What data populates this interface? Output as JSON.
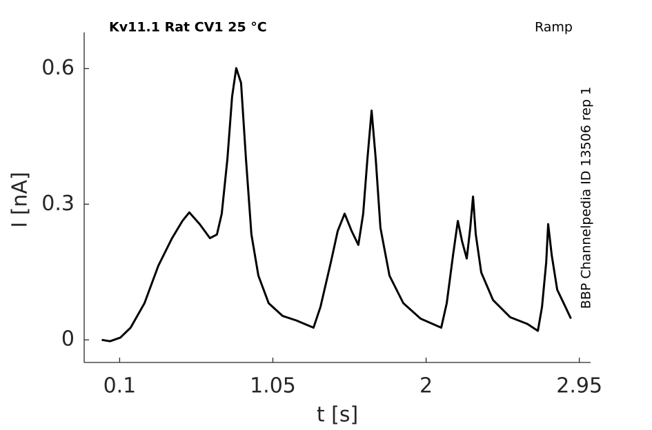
{
  "chart_data": {
    "type": "line",
    "title": "Kv11.1  Rat  CV1  25 °C",
    "subtitle": "Ramp",
    "annotation": "BBP Channelpedia ID 13506 rep 1",
    "xlabel": "t [s]",
    "ylabel": "I [nA]",
    "x": [
      -0.011,
      0.04,
      0.104,
      0.168,
      0.254,
      0.34,
      0.425,
      0.489,
      0.532,
      0.596,
      0.66,
      0.703,
      0.733,
      0.768,
      0.797,
      0.823,
      0.853,
      0.883,
      0.917,
      0.96,
      1.024,
      1.11,
      1.195,
      1.302,
      1.345,
      1.41,
      1.452,
      1.495,
      1.538,
      1.58,
      1.61,
      1.636,
      1.662,
      1.688,
      1.717,
      1.773,
      1.859,
      1.966,
      2.094,
      2.128,
      2.167,
      2.197,
      2.223,
      2.252,
      2.274,
      2.291,
      2.308,
      2.342,
      2.415,
      2.522,
      2.629,
      2.693,
      2.719,
      2.745,
      2.757,
      2.779,
      2.813,
      2.864,
      2.898
    ],
    "values": [
      0,
      -0.003,
      0.005,
      0.027,
      0.081,
      0.164,
      0.225,
      0.263,
      0.282,
      0.256,
      0.225,
      0.233,
      0.279,
      0.4,
      0.538,
      0.601,
      0.568,
      0.4,
      0.233,
      0.142,
      0.081,
      0.053,
      0.043,
      0.027,
      0.073,
      0.172,
      0.241,
      0.279,
      0.241,
      0.21,
      0.279,
      0.4,
      0.507,
      0.4,
      0.248,
      0.142,
      0.081,
      0.047,
      0.027,
      0.081,
      0.187,
      0.263,
      0.218,
      0.18,
      0.248,
      0.317,
      0.233,
      0.149,
      0.088,
      0.05,
      0.035,
      0.02,
      0.073,
      0.172,
      0.256,
      0.187,
      0.111,
      0.073,
      0.047
    ],
    "color": "#000000",
    "xlim": [
      -0.12,
      3.02
    ],
    "xticks": [
      0.1,
      1.05,
      2,
      2.95
    ],
    "ylim": [
      -0.05,
      0.68
    ],
    "yticks": [
      0,
      0.3,
      0.6
    ]
  }
}
